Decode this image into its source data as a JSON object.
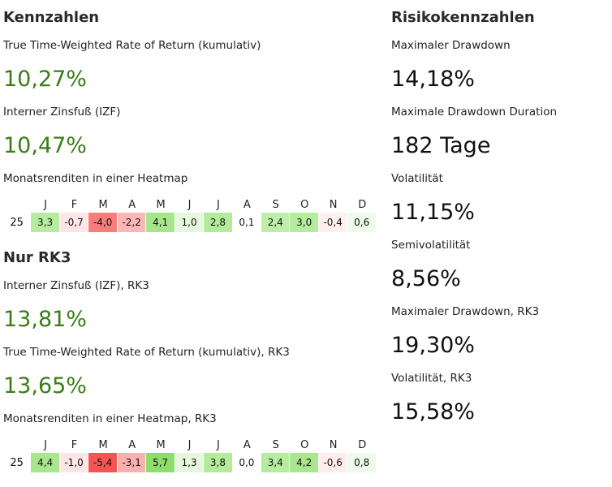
{
  "left": {
    "title": "Kennzahlen",
    "metrics": [
      {
        "label": "True Time-Weighted Rate of Return (kumulativ)",
        "value": "10,27%"
      },
      {
        "label": "Interner Zinsfuß (IZF)",
        "value": "10,47%"
      }
    ],
    "heatmap1": {
      "label": "Monatsrenditen in einer Heatmap",
      "year": "25",
      "months": [
        "J",
        "F",
        "M",
        "A",
        "M",
        "J",
        "J",
        "A",
        "S",
        "O",
        "N",
        "D"
      ],
      "values": [
        "3,3",
        "-0,7",
        "-4,0",
        "-2,2",
        "4,1",
        "1,0",
        "2,8",
        "0,1",
        "2,4",
        "3,0",
        "-0,4",
        "0,6"
      ],
      "colors": [
        "#b6ec9f",
        "#ffe5e5",
        "#f77d7d",
        "#fbb6b6",
        "#a6e68b",
        "#e6f7dd",
        "#b4eb9b",
        "#ffffff",
        "#bfeeaa",
        "#b6ec9f",
        "#fff0f0",
        "#eefaea"
      ]
    },
    "subtitle": "Nur RK3",
    "metrics2": [
      {
        "label": "Interner Zinsfuß (IZF), RK3",
        "value": "13,81%"
      },
      {
        "label": "True Time-Weighted Rate of Return (kumulativ), RK3",
        "value": "13,65%"
      }
    ],
    "heatmap2": {
      "label": "Monatsrenditen in einer Heatmap, RK3",
      "year": "25",
      "months": [
        "J",
        "F",
        "M",
        "A",
        "M",
        "J",
        "J",
        "A",
        "S",
        "O",
        "N",
        "D"
      ],
      "values": [
        "4,4",
        "-1,0",
        "-5,4",
        "-3,1",
        "5,7",
        "1,3",
        "3,8",
        "0,0",
        "3,4",
        "4,2",
        "-0,6",
        "0,8"
      ],
      "colors": [
        "#a8e68e",
        "#ffe5e5",
        "#f65454",
        "#fbb0b0",
        "#8cde69",
        "#e6f7dd",
        "#b4eb9b",
        "#ffffff",
        "#b6ec9f",
        "#a9e68f",
        "#ffeded",
        "#eefaea"
      ]
    }
  },
  "right": {
    "title": "Risikokennzahlen",
    "metrics": [
      {
        "label": "Maximaler Drawdown",
        "value": "14,18%"
      },
      {
        "label": "Maximale Drawdown Duration",
        "value": "182 Tage"
      },
      {
        "label": "Volatilität",
        "value": "11,15%"
      },
      {
        "label": "Semivolatilität",
        "value": "8,56%"
      },
      {
        "label": "Maximaler Drawdown, RK3",
        "value": "19,30%"
      },
      {
        "label": "Volatilität, RK3",
        "value": "15,58%"
      }
    ]
  }
}
